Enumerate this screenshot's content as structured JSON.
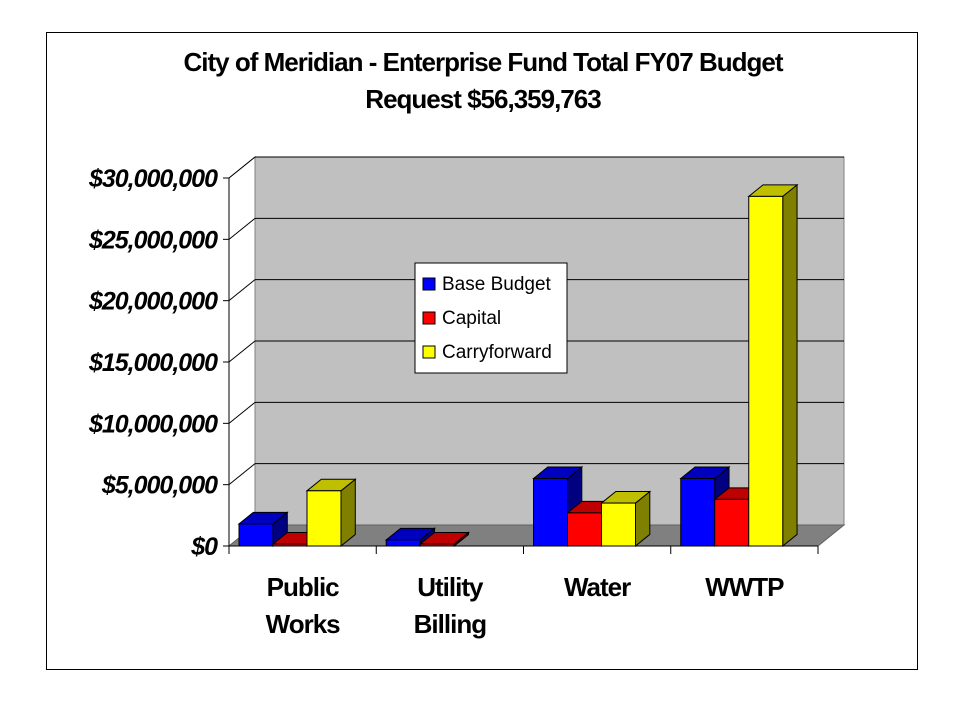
{
  "chart_data": {
    "type": "bar",
    "title_lines": [
      "City of Meridian - Enterprise Fund Total FY07 Budget",
      "Request  $56,359,763"
    ],
    "categories": [
      [
        "Public",
        "Works"
      ],
      [
        "Utility",
        "Billing"
      ],
      [
        "Water"
      ],
      [
        "WWTP"
      ]
    ],
    "series": [
      {
        "name": "Base Budget",
        "color": "#0000FF",
        "values": [
          1800000,
          500000,
          5500000,
          5500000
        ]
      },
      {
        "name": "Capital",
        "color": "#FF0000",
        "values": [
          100000,
          50000,
          2700000,
          3800000
        ]
      },
      {
        "name": "Carryforward",
        "color": "#FFFF00",
        "values": [
          4500000,
          0,
          3500000,
          28500000
        ]
      }
    ],
    "yticks": [
      "$0",
      "$5,000,000",
      "$10,000,000",
      "$15,000,000",
      "$20,000,000",
      "$25,000,000",
      "$30,000,000"
    ],
    "ylim": [
      0,
      30000000
    ],
    "legend_position": "inside-center",
    "grid": true,
    "style": "3d-clustered-column"
  }
}
